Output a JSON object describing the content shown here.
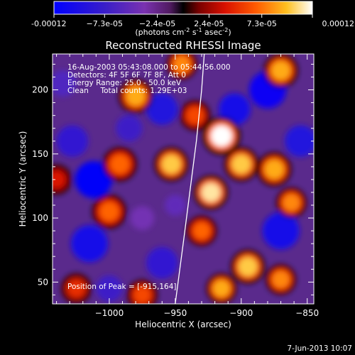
{
  "chart_data": {
    "type": "heatmap",
    "title": "Reconstructed RHESSI Image",
    "xlabel": "Heliocentric X (arcsec)",
    "ylabel": "Heliocentric Y (arcsec)",
    "xlim": [
      -1043,
      -845
    ],
    "ylim": [
      33,
      228
    ],
    "x_ticks": [
      -1000,
      -950,
      -900,
      -850
    ],
    "x_tick_labels": [
      "−1000",
      "−950",
      "−900",
      "−850"
    ],
    "y_ticks": [
      50,
      100,
      150,
      200
    ],
    "y_tick_labels": [
      "50",
      "100",
      "150",
      "200"
    ],
    "colorbar": {
      "range": [
        -0.00012,
        0.00012
      ],
      "tick_values": [
        -0.00012,
        -7.3e-05,
        -2.4e-05,
        2.4e-05,
        7.3e-05,
        0.00012
      ],
      "tick_labels": [
        "-0.00012",
        "−7.3e-05",
        "−2.4e-05",
        "2.4e-05",
        "7.3e-05",
        "0.00012"
      ],
      "unit_label": "(photons cm",
      "unit_exp1": "-2",
      "unit_mid": " s",
      "unit_exp2": "-1",
      "unit_end": " asec",
      "unit_exp3": "-2",
      "unit_close": ")"
    },
    "annotations": [
      "16-Aug-2003 05:43:08.000 to 05:44:56.000",
      "Detectors: 4F 5F 6F 7F 8F, Att 0",
      "Energy Range: 25.0 - 50.0 keV",
      "Clean     Total counts: 1.29E+03"
    ],
    "peak_label": "Position of Peak = [-915,164]",
    "peak_position": [
      -915,
      164
    ],
    "limb_curve": [
      [
        -950,
        33
      ],
      [
        -944,
        80
      ],
      [
        -939,
        120
      ],
      [
        -934,
        160
      ],
      [
        -930,
        200
      ],
      [
        -928,
        228
      ]
    ],
    "blobs": [
      {
        "x": -1012,
        "y": 130,
        "v": -0.000115,
        "r": 14
      },
      {
        "x": -1015,
        "y": 80,
        "v": -0.0001,
        "r": 14
      },
      {
        "x": -1028,
        "y": 160,
        "v": -8e-05,
        "r": 12
      },
      {
        "x": -1000,
        "y": 45,
        "v": -7e-05,
        "r": 10
      },
      {
        "x": -960,
        "y": 185,
        "v": -9e-05,
        "r": 12
      },
      {
        "x": -985,
        "y": 170,
        "v": -7e-05,
        "r": 10
      },
      {
        "x": -905,
        "y": 185,
        "v": -0.0001,
        "r": 12
      },
      {
        "x": -880,
        "y": 200,
        "v": -0.00011,
        "r": 14
      },
      {
        "x": -855,
        "y": 160,
        "v": -9e-05,
        "r": 12
      },
      {
        "x": -870,
        "y": 90,
        "v": -0.0001,
        "r": 14
      },
      {
        "x": -960,
        "y": 65,
        "v": -8e-05,
        "r": 12
      },
      {
        "x": -950,
        "y": 110,
        "v": -5e-05,
        "r": 8
      },
      {
        "x": -1035,
        "y": 205,
        "v": -6e-05,
        "r": 10
      },
      {
        "x": -975,
        "y": 100,
        "v": -4e-05,
        "r": 9
      },
      {
        "x": -980,
        "y": 195,
        "v": 9e-05,
        "r": 9
      },
      {
        "x": -953,
        "y": 142,
        "v": 0.0001,
        "r": 9
      },
      {
        "x": -915,
        "y": 164,
        "v": 0.00012,
        "r": 10
      },
      {
        "x": -923,
        "y": 120,
        "v": 0.00011,
        "r": 9
      },
      {
        "x": -900,
        "y": 142,
        "v": 0.0001,
        "r": 9
      },
      {
        "x": -870,
        "y": 215,
        "v": 9e-05,
        "r": 9
      },
      {
        "x": -875,
        "y": 138,
        "v": 9e-05,
        "r": 9
      },
      {
        "x": -862,
        "y": 112,
        "v": 8e-05,
        "r": 8
      },
      {
        "x": -895,
        "y": 62,
        "v": 0.0001,
        "r": 9
      },
      {
        "x": -915,
        "y": 45,
        "v": 9e-05,
        "r": 8
      },
      {
        "x": -870,
        "y": 52,
        "v": 8e-05,
        "r": 8
      },
      {
        "x": -992,
        "y": 142,
        "v": 7e-05,
        "r": 9
      },
      {
        "x": -1000,
        "y": 105,
        "v": 7e-05,
        "r": 9
      },
      {
        "x": -930,
        "y": 90,
        "v": 7e-05,
        "r": 8
      },
      {
        "x": -945,
        "y": 220,
        "v": 8e-05,
        "r": 8
      },
      {
        "x": -935,
        "y": 180,
        "v": 6e-05,
        "r": 8
      },
      {
        "x": -1040,
        "y": 130,
        "v": 4e-05,
        "r": 8
      },
      {
        "x": -1025,
        "y": 45,
        "v": 5e-05,
        "r": 8
      },
      {
        "x": -975,
        "y": 40,
        "v": 6e-05,
        "r": 8
      }
    ]
  },
  "footer": {
    "timestamp": "7-Jun-2013 10:07"
  }
}
